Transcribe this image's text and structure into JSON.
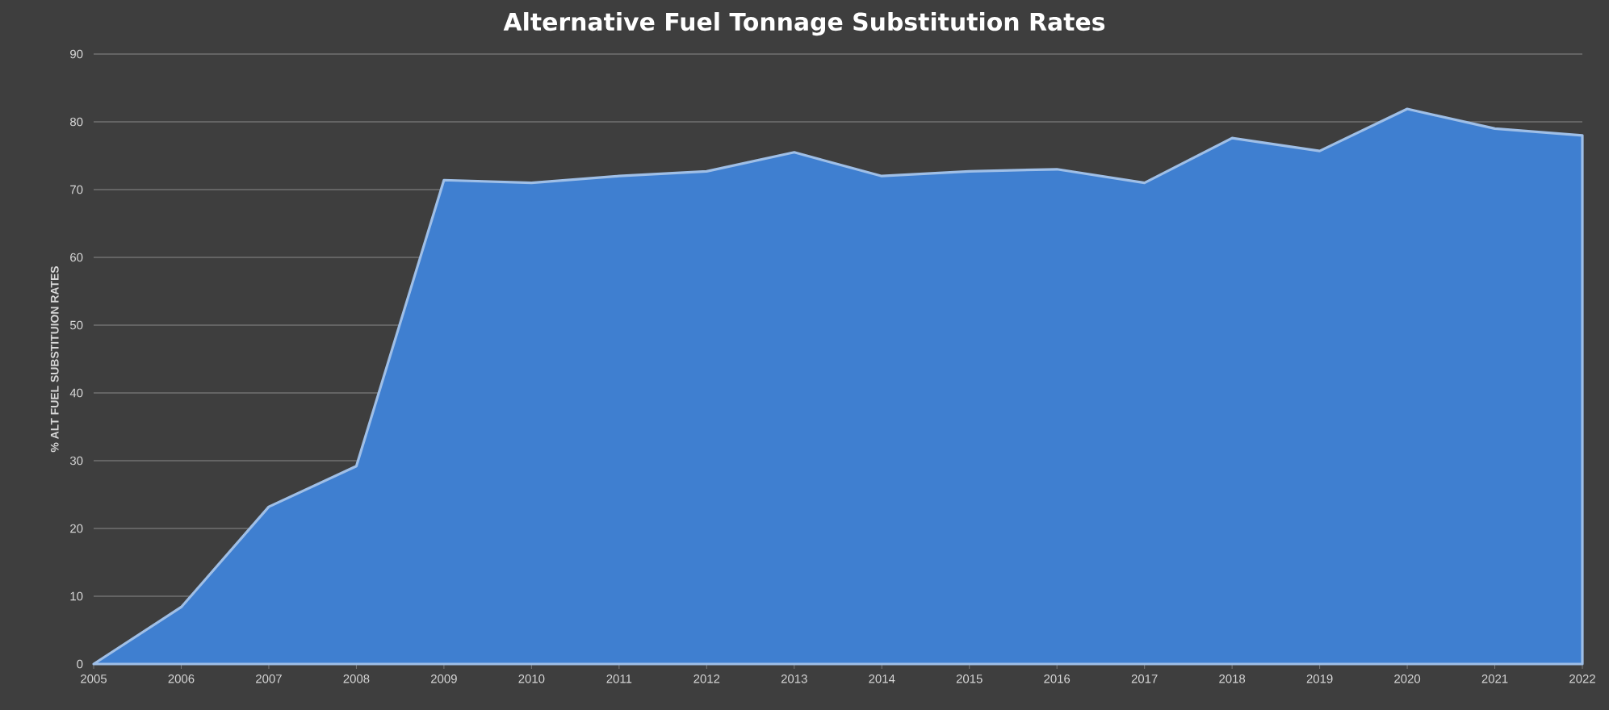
{
  "chart_data": {
    "type": "area",
    "title": "Alternative Fuel Tonnage Substitution Rates",
    "ylabel": "% ALT FUEL SUBSTITUION RATES",
    "x": [
      2005,
      2006,
      2007,
      2008,
      2009,
      2010,
      2011,
      2012,
      2013,
      2014,
      2015,
      2016,
      2017,
      2018,
      2019,
      2020,
      2021,
      2022
    ],
    "values": [
      0,
      8.4,
      23.2,
      29.2,
      71.4,
      71.0,
      72.0,
      72.7,
      75.5,
      72.0,
      72.7,
      73.0,
      71.0,
      77.6,
      75.7,
      81.9,
      79.0,
      78.0
    ],
    "color": "#3f7fd0",
    "xlim": [
      2005,
      2022
    ],
    "xticks": [
      2005,
      2006,
      2007,
      2008,
      2009,
      2010,
      2011,
      2012,
      2013,
      2014,
      2015,
      2016,
      2017,
      2018,
      2019,
      2020,
      2021,
      2022
    ],
    "ylim": [
      0,
      90
    ],
    "yticks": [
      0,
      10,
      20,
      30,
      40,
      50,
      60,
      70,
      80,
      90
    ],
    "grid": "y"
  }
}
